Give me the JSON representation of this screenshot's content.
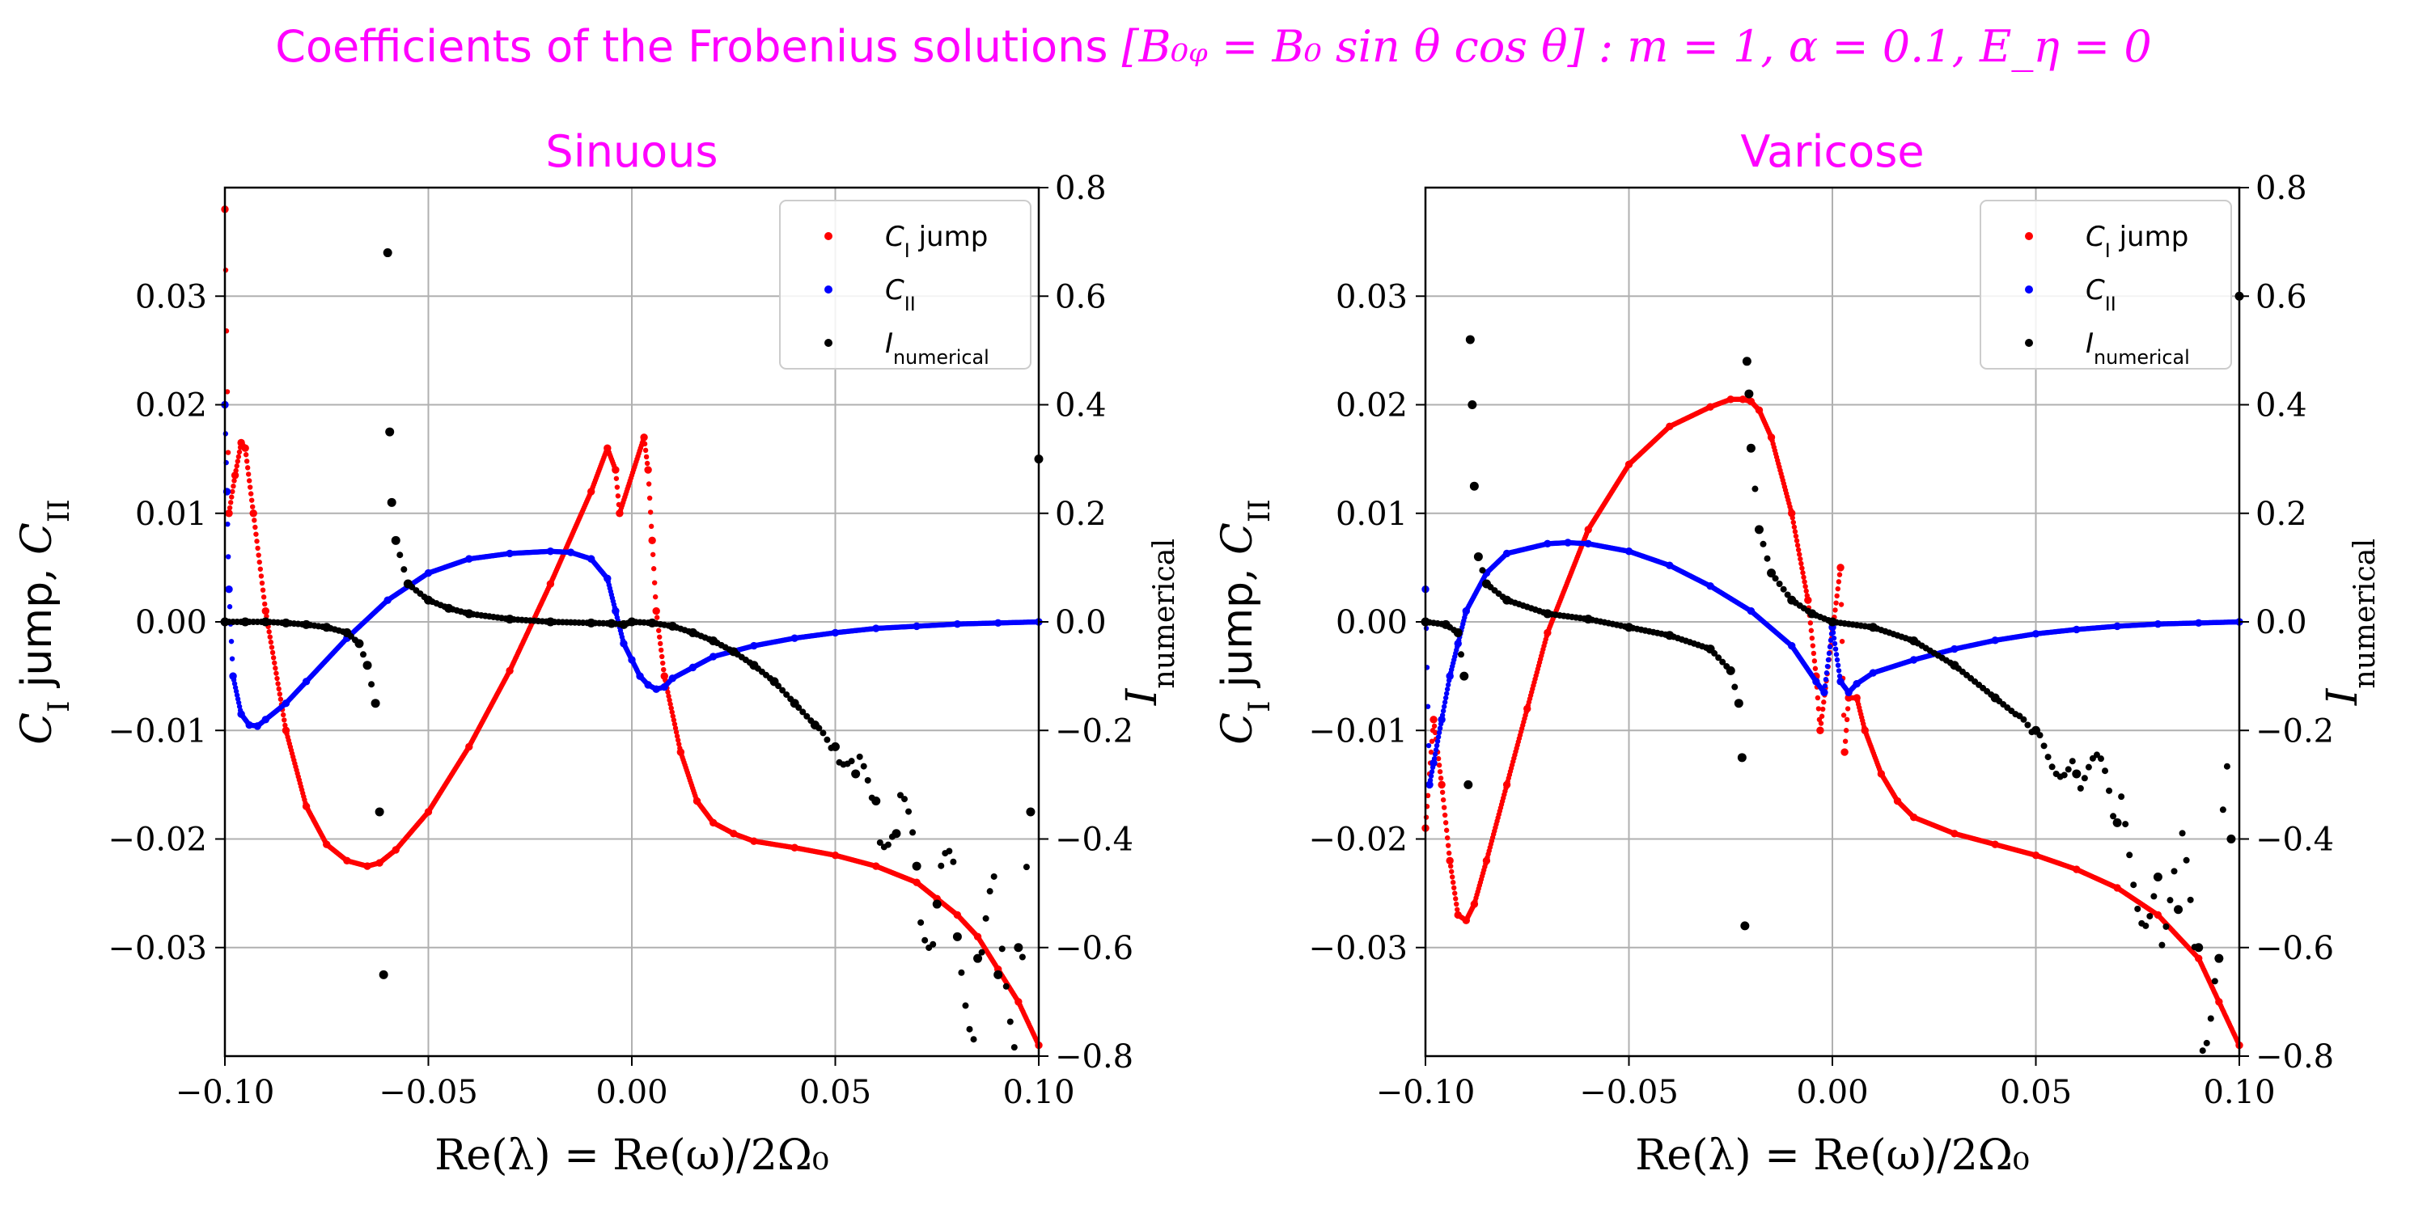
{
  "figure": {
    "suptitle_prefix": "Coefficients of the Frobenius solutions ",
    "suptitle_math": "[B₀ᵩ = B₀ sin θ cos θ] : m = 1, α = 0.1, E_η = 0"
  },
  "chart_data": [
    {
      "type": "scatter",
      "title": "Sinuous",
      "xlabel": "Re(λ) = Re(ω)/2Ω₀",
      "ylabel": "C_I jump, C_II",
      "y2label": "I_numerical",
      "xlim": [
        -0.1,
        0.1
      ],
      "ylim": [
        -0.04,
        0.04
      ],
      "y2lim": [
        -0.8,
        0.8
      ],
      "xticks": [
        "−0.10",
        "−0.05",
        "0.00",
        "0.05",
        "0.10"
      ],
      "yticks": [
        "0.03",
        "0.02",
        "0.01",
        "0.00",
        "−0.01",
        "−0.02",
        "−0.03"
      ],
      "y2ticks": [
        "0.8",
        "0.6",
        "0.4",
        "0.2",
        "0.0",
        "−0.2",
        "−0.4",
        "−0.6",
        "−0.8"
      ],
      "grid": true,
      "legend_position": "top-right",
      "series": [
        {
          "name": "C_I jump",
          "color": "#ff0000",
          "axis": "left",
          "x": [
            -0.1,
            -0.099,
            -0.0975,
            -0.096,
            -0.095,
            -0.093,
            -0.09,
            -0.085,
            -0.08,
            -0.075,
            -0.07,
            -0.065,
            -0.062,
            -0.058,
            -0.05,
            -0.04,
            -0.03,
            -0.02,
            -0.01,
            -0.006,
            -0.004,
            -0.003,
            0.003,
            0.004,
            0.005,
            0.006,
            0.008,
            0.012,
            0.016,
            0.02,
            0.025,
            0.03,
            0.04,
            0.05,
            0.06,
            0.07,
            0.075,
            0.08,
            0.085,
            0.09,
            0.095,
            0.1
          ],
          "y": [
            0.038,
            0.01,
            0.0135,
            0.0165,
            0.016,
            0.01,
            0.001,
            -0.01,
            -0.017,
            -0.0205,
            -0.022,
            -0.0225,
            -0.0222,
            -0.021,
            -0.0175,
            -0.0115,
            -0.0045,
            0.0035,
            0.012,
            0.016,
            0.014,
            0.01,
            0.017,
            0.014,
            0.0075,
            0.001,
            -0.005,
            -0.012,
            -0.0165,
            -0.0185,
            -0.0195,
            -0.0202,
            -0.0208,
            -0.0215,
            -0.0225,
            -0.024,
            -0.0255,
            -0.027,
            -0.029,
            -0.032,
            -0.035,
            -0.039
          ]
        },
        {
          "name": "C_II",
          "color": "#0000ff",
          "axis": "left",
          "x": [
            -0.1,
            -0.0995,
            -0.099,
            -0.098,
            -0.096,
            -0.094,
            -0.092,
            -0.09,
            -0.085,
            -0.08,
            -0.07,
            -0.06,
            -0.05,
            -0.04,
            -0.03,
            -0.02,
            -0.015,
            -0.01,
            -0.006,
            -0.004,
            -0.002,
            0.0,
            0.002,
            0.004,
            0.006,
            0.008,
            0.01,
            0.015,
            0.02,
            0.03,
            0.04,
            0.05,
            0.06,
            0.07,
            0.08,
            0.09,
            0.1
          ],
          "y": [
            0.02,
            0.012,
            0.003,
            -0.005,
            -0.0085,
            -0.0095,
            -0.0096,
            -0.009,
            -0.0075,
            -0.0055,
            -0.0015,
            0.002,
            0.0045,
            0.0058,
            0.0063,
            0.0065,
            0.0064,
            0.0058,
            0.004,
            0.001,
            -0.002,
            -0.0035,
            -0.005,
            -0.0058,
            -0.0062,
            -0.006,
            -0.0052,
            -0.0042,
            -0.0032,
            -0.0022,
            -0.0015,
            -0.001,
            -0.0006,
            -0.0004,
            -0.0002,
            -0.0001,
            0.0
          ]
        },
        {
          "name": "I_numerical",
          "color": "#000000",
          "axis": "right",
          "x": [
            -0.1,
            -0.095,
            -0.09,
            -0.085,
            -0.08,
            -0.075,
            -0.07,
            -0.067,
            -0.065,
            -0.063,
            -0.062,
            -0.061,
            -0.06,
            -0.0595,
            -0.059,
            -0.058,
            -0.055,
            -0.05,
            -0.045,
            -0.04,
            -0.03,
            -0.02,
            -0.01,
            -0.005,
            -0.002,
            0.0,
            0.005,
            0.01,
            0.015,
            0.02,
            0.025,
            0.03,
            0.035,
            0.04,
            0.045,
            0.05,
            0.055,
            0.06,
            0.065,
            0.07,
            0.075,
            0.08,
            0.085,
            0.09,
            0.095,
            0.098,
            0.1
          ],
          "y": [
            0.0,
            0.0,
            0.0,
            -0.002,
            -0.005,
            -0.01,
            -0.02,
            -0.04,
            -0.08,
            -0.15,
            -0.35,
            -0.65,
            0.68,
            0.35,
            0.22,
            0.15,
            0.07,
            0.04,
            0.025,
            0.015,
            0.005,
            0.0,
            -0.002,
            -0.003,
            -0.005,
            0.0,
            -0.002,
            -0.008,
            -0.02,
            -0.035,
            -0.055,
            -0.08,
            -0.11,
            -0.15,
            -0.19,
            -0.23,
            -0.28,
            -0.33,
            -0.39,
            -0.45,
            -0.52,
            -0.58,
            -0.62,
            -0.65,
            -0.6,
            -0.35,
            0.3
          ]
        }
      ]
    },
    {
      "type": "scatter",
      "title": "Varicose",
      "xlabel": "Re(λ) = Re(ω)/2Ω₀",
      "ylabel": "C_I jump, C_II",
      "y2label": "I_numerical",
      "xlim": [
        -0.1,
        0.1
      ],
      "ylim": [
        -0.04,
        0.04
      ],
      "y2lim": [
        -0.8,
        0.8
      ],
      "xticks": [
        "−0.10",
        "−0.05",
        "0.00",
        "0.05",
        "0.10"
      ],
      "yticks": [
        "0.03",
        "0.02",
        "0.01",
        "0.00",
        "−0.01",
        "−0.02",
        "−0.03"
      ],
      "y2ticks": [
        "0.8",
        "0.6",
        "0.4",
        "0.2",
        "0.0",
        "−0.2",
        "−0.4",
        "−0.6",
        "−0.8"
      ],
      "grid": true,
      "legend_position": "top-right",
      "series": [
        {
          "name": "C_I jump",
          "color": "#ff0000",
          "axis": "left",
          "x": [
            -0.1,
            -0.098,
            -0.096,
            -0.094,
            -0.092,
            -0.09,
            -0.088,
            -0.085,
            -0.08,
            -0.075,
            -0.07,
            -0.06,
            -0.05,
            -0.04,
            -0.03,
            -0.025,
            -0.022,
            -0.02,
            -0.018,
            -0.015,
            -0.01,
            -0.006,
            -0.004,
            -0.003,
            0.002,
            0.003,
            0.004,
            0.006,
            0.008,
            0.012,
            0.016,
            0.02,
            0.03,
            0.04,
            0.05,
            0.06,
            0.07,
            0.08,
            0.09,
            0.095,
            0.1
          ],
          "y": [
            -0.019,
            -0.009,
            -0.015,
            -0.022,
            -0.027,
            -0.0275,
            -0.026,
            -0.022,
            -0.015,
            -0.008,
            -0.001,
            0.0085,
            0.0145,
            0.018,
            0.0198,
            0.0205,
            0.0205,
            0.0203,
            0.0195,
            0.017,
            0.01,
            0.002,
            -0.005,
            -0.01,
            0.005,
            -0.012,
            -0.007,
            -0.007,
            -0.01,
            -0.014,
            -0.0165,
            -0.018,
            -0.0195,
            -0.0205,
            -0.0215,
            -0.0228,
            -0.0245,
            -0.027,
            -0.031,
            -0.035,
            -0.039
          ]
        },
        {
          "name": "C_II",
          "color": "#0000ff",
          "axis": "left",
          "x": [
            -0.1,
            -0.099,
            -0.098,
            -0.096,
            -0.094,
            -0.092,
            -0.09,
            -0.085,
            -0.08,
            -0.07,
            -0.065,
            -0.06,
            -0.05,
            -0.04,
            -0.03,
            -0.02,
            -0.01,
            -0.004,
            -0.002,
            0.0,
            0.002,
            0.004,
            0.006,
            0.01,
            0.02,
            0.03,
            0.04,
            0.05,
            0.06,
            0.07,
            0.08,
            0.09,
            0.1
          ],
          "y": [
            0.003,
            -0.015,
            -0.013,
            -0.009,
            -0.005,
            -0.002,
            0.001,
            0.0045,
            0.0063,
            0.0072,
            0.0073,
            0.0072,
            0.0065,
            0.0052,
            0.0033,
            0.001,
            -0.0022,
            -0.0055,
            -0.0065,
            -0.0005,
            -0.0055,
            -0.0065,
            -0.0057,
            -0.0047,
            -0.0035,
            -0.0025,
            -0.0017,
            -0.0011,
            -0.0007,
            -0.0004,
            -0.0002,
            -0.0001,
            0.0
          ]
        },
        {
          "name": "I_numerical",
          "color": "#000000",
          "axis": "right",
          "x": [
            -0.1,
            -0.095,
            -0.092,
            -0.0905,
            -0.0895,
            -0.089,
            -0.0885,
            -0.088,
            -0.087,
            -0.085,
            -0.08,
            -0.07,
            -0.06,
            -0.05,
            -0.04,
            -0.03,
            -0.025,
            -0.023,
            -0.0222,
            -0.0215,
            -0.021,
            -0.0205,
            -0.02,
            -0.018,
            -0.015,
            -0.01,
            -0.005,
            0.0,
            0.01,
            0.02,
            0.03,
            0.04,
            0.05,
            0.06,
            0.07,
            0.08,
            0.085,
            0.09,
            0.095,
            0.098,
            0.1
          ],
          "y": [
            0.0,
            -0.005,
            -0.02,
            -0.1,
            -0.3,
            0.52,
            0.4,
            0.25,
            0.12,
            0.07,
            0.04,
            0.015,
            0.005,
            -0.01,
            -0.025,
            -0.05,
            -0.09,
            -0.15,
            -0.25,
            -0.56,
            0.48,
            0.42,
            0.32,
            0.17,
            0.09,
            0.04,
            0.015,
            0.0,
            -0.01,
            -0.035,
            -0.08,
            -0.14,
            -0.2,
            -0.28,
            -0.37,
            -0.47,
            -0.53,
            -0.6,
            -0.62,
            -0.4,
            0.6
          ]
        }
      ]
    }
  ]
}
